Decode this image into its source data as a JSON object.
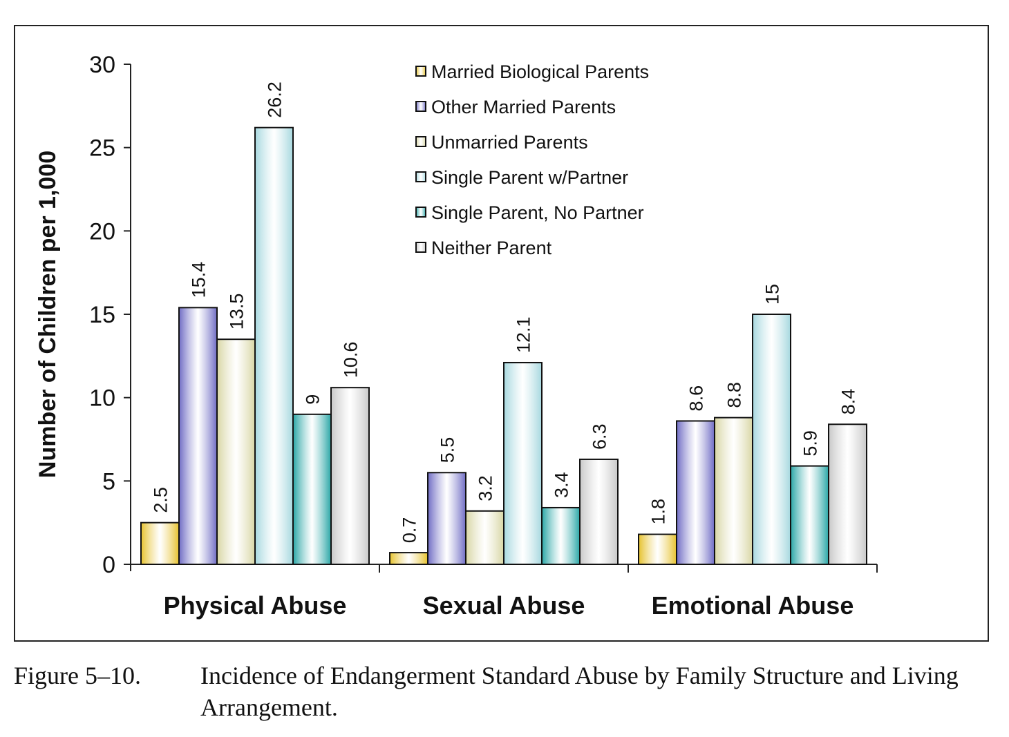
{
  "chart_data": {
    "type": "bar",
    "categories": [
      "Physical Abuse",
      "Sexual Abuse",
      "Emotional Abuse"
    ],
    "series": [
      {
        "name": "Married Biological Parents",
        "values": [
          2.5,
          0.7,
          1.8
        ],
        "labels": [
          "2.5",
          "0.7",
          "1.8"
        ],
        "color": "#e6c22e"
      },
      {
        "name": "Other Married Parents",
        "values": [
          15.4,
          5.5,
          8.6
        ],
        "labels": [
          "15.4",
          "5.5",
          "8.6"
        ],
        "color": "#6f6cc4"
      },
      {
        "name": "Unmarried Parents",
        "values": [
          13.5,
          3.2,
          8.8
        ],
        "labels": [
          "13.5",
          "3.2",
          "8.8"
        ],
        "color": "#d8d6a4"
      },
      {
        "name": "Single Parent w/Partner",
        "values": [
          26.2,
          12.1,
          15.0
        ],
        "labels": [
          "26.2",
          "12.1",
          "15.0"
        ],
        "color": "#a6d8df"
      },
      {
        "name": "Single Parent, No Partner",
        "values": [
          9.0,
          3.4,
          5.9
        ],
        "labels": [
          "9.0",
          "3.4",
          "5.9"
        ],
        "color": "#2aa6a6"
      },
      {
        "name": "Neither Parent",
        "values": [
          10.6,
          6.3,
          8.4
        ],
        "labels": [
          "10.6",
          "6.3",
          "8.4"
        ],
        "color": "#c8c8c8"
      }
    ],
    "ylabel": "Number of Children per 1,000",
    "xlabel": "",
    "ylim": [
      0,
      30
    ],
    "yticks": [
      "0",
      "5",
      "10",
      "15",
      "20",
      "25",
      "30"
    ],
    "grid": false,
    "legend_position": "top-center"
  },
  "caption": {
    "number": "Figure 5–10.",
    "text": "Incidence of Endangerment Standard Abuse by Family Structure and Living Arrangement."
  }
}
